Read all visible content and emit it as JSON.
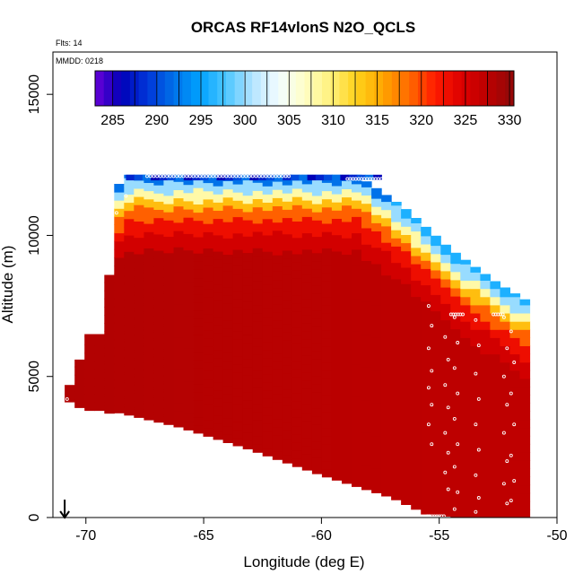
{
  "chart_data": {
    "type": "heatmap",
    "title": "ORCAS RF14vlonS N2O_QCLS",
    "subtitle": "Flts: 14",
    "annotation": "MMDD: 0218",
    "xlabel": "Longitude (deg E)",
    "ylabel": "Altitude (m)",
    "xlim": [
      -71.4,
      -50
    ],
    "ylim": [
      0,
      16500
    ],
    "xticks": [
      -70,
      -65,
      -60,
      -55,
      -50
    ],
    "xtick_labels": [
      "-70",
      "-65",
      "-60",
      "-55",
      "-50"
    ],
    "yticks": [
      0,
      5000,
      10000,
      15000
    ],
    "ytick_labels": [
      "0",
      "5000",
      "10000",
      "15000"
    ],
    "colorbar": {
      "range": [
        283,
        330.5
      ],
      "ticks": [
        285,
        290,
        295,
        300,
        305,
        310,
        315,
        320,
        325,
        330
      ],
      "tick_labels": [
        "285",
        "290",
        "295",
        "300",
        "305",
        "310",
        "315",
        "320",
        "325",
        "330"
      ],
      "colors": [
        "#6a00d8",
        "#0000b8",
        "#0036d8",
        "#0070e8",
        "#00a2ff",
        "#4cc6ff",
        "#b4e4ff",
        "#f2fcff",
        "#ffffc8",
        "#fff07a",
        "#ffd21a",
        "#ffa400",
        "#ff6a00",
        "#ff1a00",
        "#dc0000",
        "#bc0000",
        "#8e0a0a"
      ]
    },
    "field": {
      "description": "N2O mixing ratio (ppb) curtain vs longitude and altitude",
      "lon_columns": [
        -69.5,
        -69,
        -68.5,
        -68,
        -67.5,
        -67,
        -66.5,
        -66,
        -65.5,
        -65,
        -64.5,
        -64,
        -63.5,
        -63,
        -62.5,
        -62,
        -61.5,
        -61,
        -60.5,
        -60,
        -59.5,
        -59,
        -58.5,
        -58,
        -57.5,
        -57,
        -56.5,
        -56,
        -55.5,
        -55,
        -54.5,
        -54,
        -53.5,
        -53,
        -52.5,
        -52,
        -51.5
      ],
      "surface_bottom_alt_m": 4000,
      "top_alt_m": 12150,
      "interior_value": 327.5,
      "tropopause_gradient": [
        {
          "alt_m": 11800,
          "value": 295
        },
        {
          "alt_m": 11300,
          "value": 303
        },
        {
          "alt_m": 10900,
          "value": 312
        },
        {
          "alt_m": 10500,
          "value": 318
        },
        {
          "alt_m": 10000,
          "value": 323
        },
        {
          "alt_m": 9400,
          "value": 326
        }
      ]
    },
    "flight_track": {
      "name": "aircraft sample points",
      "color": "#ffffff"
    },
    "start_marker": {
      "lon": -70.9,
      "alt_m": 0,
      "symbol": "down-arrow"
    }
  }
}
